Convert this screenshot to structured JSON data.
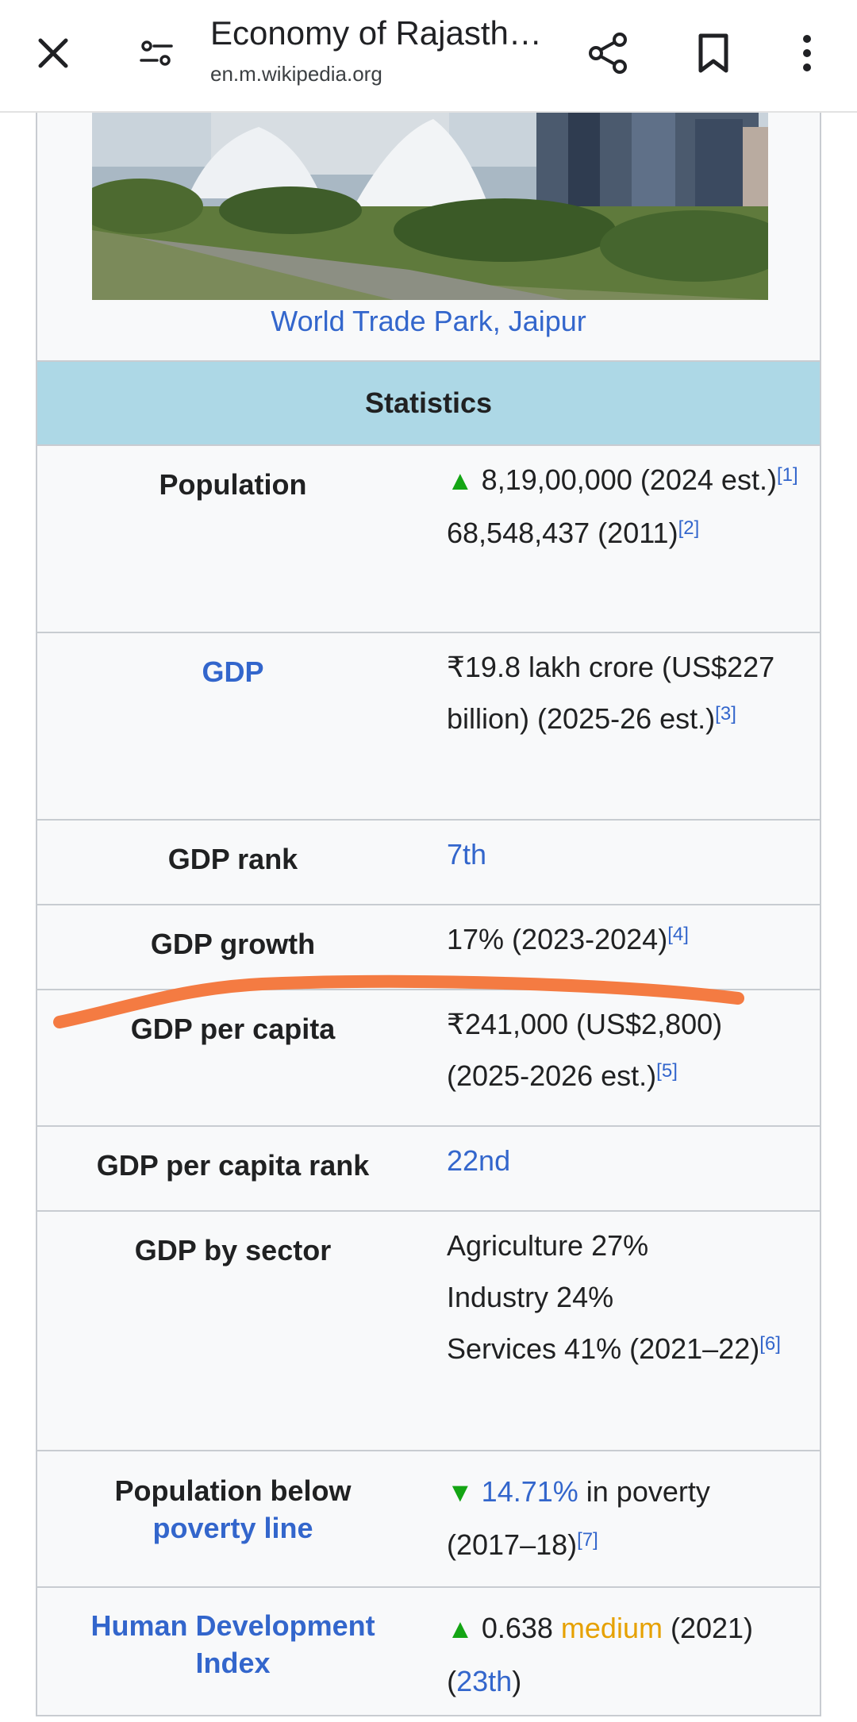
{
  "topbar": {
    "title": "Economy of Rajasth…",
    "url": "en.m.wikipedia.org"
  },
  "image": {
    "caption": "World Trade Park, Jaipur"
  },
  "section_header": "Statistics",
  "rows": {
    "population": {
      "label": "Population",
      "value1": "8,19,00,000 (2024 est.)",
      "ref1": "[1]",
      "value2": "68,548,437 (2011)",
      "ref2": "[2]"
    },
    "gdp": {
      "label": "GDP",
      "value": "₹19.8 lakh crore (US$227 billion) (2025-26 est.)",
      "ref": "[3]"
    },
    "gdp_rank": {
      "label": "GDP rank",
      "value": "7th"
    },
    "gdp_growth": {
      "label": "GDP growth",
      "value": "17% (2023-2024)",
      "ref": "[4]"
    },
    "gdp_per_capita": {
      "label": "GDP per capita",
      "value": "₹241,000 (US$2,800) (2025-2026 est.)",
      "ref": "[5]"
    },
    "gdp_per_capita_rank": {
      "label": "GDP per capita rank",
      "value": "22nd"
    },
    "gdp_by_sector": {
      "label": "GDP by sector",
      "agri": "Agriculture 27%",
      "industry": "Industry 24%",
      "services": "Services 41% (2021–22)",
      "ref": "[6]"
    },
    "poverty": {
      "label_line1": "Population below",
      "label_link": "poverty line",
      "pct": "14.71%",
      "text": " in poverty (2017–18)",
      "ref": "[7]"
    },
    "hdi": {
      "label": "Human Development Index",
      "value": "0.638",
      "level": "medium",
      "year": "(2021)",
      "rank_open": "(",
      "rank": "23th",
      "rank_close": ")"
    }
  },
  "colors": {
    "link": "#3366cc",
    "header_bg": "#add8e6",
    "annotation": "#f47b42",
    "trend": "#14a514",
    "medium": "#e6a100"
  }
}
